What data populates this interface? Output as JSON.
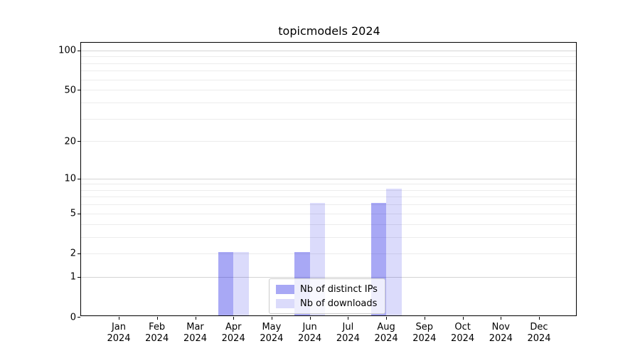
{
  "title": "topicmodels 2024",
  "chart_data": {
    "type": "bar",
    "title": "topicmodels 2024",
    "xlabel": "",
    "ylabel": "",
    "categories": [
      "Jan",
      "Feb",
      "Mar",
      "Apr",
      "May",
      "Jun",
      "Jul",
      "Aug",
      "Sep",
      "Oct",
      "Nov",
      "Dec"
    ],
    "category_year": "2024",
    "series": [
      {
        "name": "Nb of distinct IPs",
        "color": "rgba(0,0,227,0.34)",
        "values": [
          0,
          0,
          0,
          2,
          0,
          2,
          0,
          6,
          0,
          0,
          0,
          0
        ]
      },
      {
        "name": "Nb of downloads",
        "color": "rgba(0,0,227,0.14)",
        "values": [
          0,
          0,
          0,
          2,
          0,
          6,
          0,
          8,
          0,
          0,
          0,
          0
        ]
      }
    ],
    "yscale": "log1p",
    "ylim": [
      0,
      114
    ],
    "ytick_labels": [
      0,
      1,
      2,
      5,
      10,
      20,
      50,
      100
    ],
    "major_gridlines": [
      1,
      10,
      100
    ],
    "minor_gridlines": [
      2,
      3,
      4,
      5,
      6,
      7,
      8,
      9,
      20,
      30,
      40,
      50,
      60,
      70,
      80,
      90
    ],
    "grid": "horizontal-only",
    "legend_position": "lower-center-inside"
  },
  "colors": {
    "background": "#ffffff",
    "spine": "#000000",
    "text": "#000000",
    "gridline_major": "#d4d4d4",
    "gridline_minor": "#ececec",
    "legend_border": "#cccccc",
    "legend_background": "rgba(255,255,255,0.8)"
  }
}
